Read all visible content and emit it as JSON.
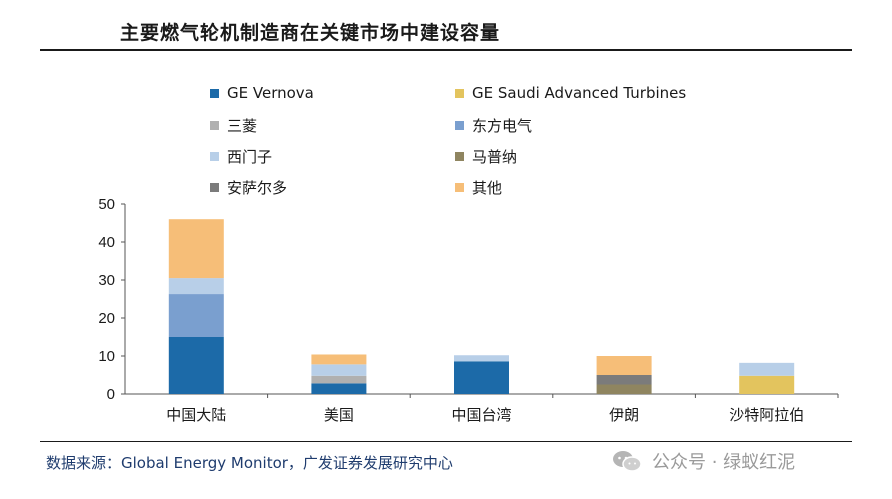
{
  "header": {
    "title": "主要燃气轮机制造商在关键市场中建设容量"
  },
  "footer": {
    "source": "数据来源：Global Energy Monitor，广发证券发展研究中心"
  },
  "watermark": {
    "text": "公众号 · 绿蚁红泥",
    "icon": "wechat-icon"
  },
  "chart_data": {
    "type": "bar",
    "stacked": true,
    "title": "",
    "xlabel": "",
    "ylabel": "",
    "ylim": [
      0,
      50
    ],
    "yticks": [
      "0",
      "10",
      "20",
      "30",
      "40",
      "50"
    ],
    "grid": false,
    "legend_position": "top",
    "categories": [
      "中国大陆",
      "美国",
      "中国台湾",
      "伊朗",
      "沙特阿拉伯"
    ],
    "series": [
      {
        "name": "GE Vernova",
        "color": "#1c6aa8",
        "values": [
          15,
          2.8,
          8.6,
          0,
          0
        ]
      },
      {
        "name": "GE Saudi Advanced Turbines",
        "color": "#e3c45e",
        "values": [
          0,
          0,
          0,
          0,
          4.8
        ]
      },
      {
        "name": "三菱",
        "color": "#b0b0b0",
        "values": [
          0,
          2.0,
          0,
          0,
          0
        ]
      },
      {
        "name": "东方电气",
        "color": "#7a9fcf",
        "values": [
          11.3,
          0,
          0,
          0,
          0
        ]
      },
      {
        "name": "西门子",
        "color": "#b8cfe8",
        "values": [
          4.2,
          3.0,
          1.6,
          0,
          3.4
        ]
      },
      {
        "name": "马普纳",
        "color": "#8f8560",
        "values": [
          0,
          0,
          0,
          2.5,
          0
        ]
      },
      {
        "name": "安萨尔多",
        "color": "#7b7b7b",
        "values": [
          0,
          0,
          0,
          2.5,
          0
        ]
      },
      {
        "name": "其他",
        "color": "#f6be78",
        "values": [
          15.5,
          2.6,
          0,
          5.0,
          0
        ]
      }
    ]
  }
}
